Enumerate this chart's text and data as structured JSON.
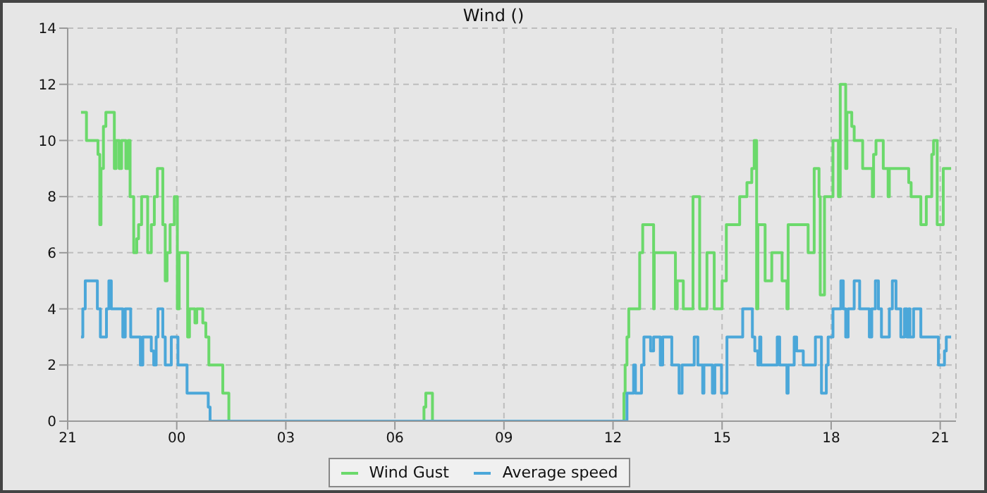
{
  "chart_data": {
    "type": "step",
    "title": "Wind ()",
    "xlim": [
      "2000-01-01T21:00",
      "2000-01-02T21:26"
    ],
    "xticks": [
      {
        "value": "2000-01-01T21:00",
        "label": "21"
      },
      {
        "value": "2000-01-02T00:00",
        "label": "00"
      },
      {
        "value": "2000-01-02T03:00",
        "label": "03"
      },
      {
        "value": "2000-01-02T06:00",
        "label": "06"
      },
      {
        "value": "2000-01-02T09:00",
        "label": "09"
      },
      {
        "value": "2000-01-02T12:00",
        "label": "12"
      },
      {
        "value": "2000-01-02T15:00",
        "label": "15"
      },
      {
        "value": "2000-01-02T18:00",
        "label": "18"
      },
      {
        "value": "2000-01-02T21:00",
        "label": "21"
      }
    ],
    "ylim": [
      0,
      14
    ],
    "yticks": [
      0,
      2,
      4,
      6,
      8,
      10,
      12,
      14
    ],
    "grid": true,
    "legend": "bottom",
    "line_style": "solid",
    "marker": "none",
    "series": [
      {
        "name": "Wind Gust",
        "color": "#6bd96b",
        "x": [
          "2000-01-01T21:22",
          "2000-01-01T21:31",
          "2000-01-01T21:50",
          "2000-01-01T21:53",
          "2000-01-01T21:55",
          "2000-01-01T21:59",
          "2000-01-01T22:03",
          "2000-01-01T22:17",
          "2000-01-01T22:20",
          "2000-01-01T22:25",
          "2000-01-01T22:29",
          "2000-01-01T22:36",
          "2000-01-01T22:40",
          "2000-01-01T22:43",
          "2000-01-01T22:49",
          "2000-01-01T22:54",
          "2000-01-01T22:57",
          "2000-01-01T23:02",
          "2000-01-01T23:12",
          "2000-01-01T23:18",
          "2000-01-01T23:23",
          "2000-01-01T23:28",
          "2000-01-01T23:37",
          "2000-01-01T23:41",
          "2000-01-01T23:44",
          "2000-01-01T23:49",
          "2000-01-01T23:56",
          "2000-01-02T00:01",
          "2000-01-02T00:04",
          "2000-01-02T00:18",
          "2000-01-02T00:21",
          "2000-01-02T00:30",
          "2000-01-02T00:33",
          "2000-01-02T00:43",
          "2000-01-02T00:48",
          "2000-01-02T00:53",
          "2000-01-02T01:02",
          "2000-01-02T01:16",
          "2000-01-02T01:26",
          "2000-01-02T06:48",
          "2000-01-02T06:51",
          "2000-01-02T07:02",
          "2000-01-02T12:18",
          "2000-01-02T12:20",
          "2000-01-02T12:23",
          "2000-01-02T12:26",
          "2000-01-02T12:44",
          "2000-01-02T12:49",
          "2000-01-02T13:07",
          "2000-01-02T13:08",
          "2000-01-02T13:43",
          "2000-01-02T13:46",
          "2000-01-02T13:56",
          "2000-01-02T14:12",
          "2000-01-02T14:23",
          "2000-01-02T14:35",
          "2000-01-02T14:47",
          "2000-01-02T15:00",
          "2000-01-02T15:07",
          "2000-01-02T15:29",
          "2000-01-02T15:41",
          "2000-01-02T15:49",
          "2000-01-02T15:53",
          "2000-01-02T15:57",
          "2000-01-02T15:59",
          "2000-01-02T16:11",
          "2000-01-02T16:22",
          "2000-01-02T16:39",
          "2000-01-02T16:47",
          "2000-01-02T16:49",
          "2000-01-02T17:22",
          "2000-01-02T17:32",
          "2000-01-02T17:40",
          "2000-01-02T17:42",
          "2000-01-02T17:49",
          "2000-01-02T18:03",
          "2000-01-02T18:12",
          "2000-01-02T18:15",
          "2000-01-02T18:24",
          "2000-01-02T18:26",
          "2000-01-02T18:34",
          "2000-01-02T18:38",
          "2000-01-02T18:52",
          "2000-01-02T19:08",
          "2000-01-02T19:10",
          "2000-01-02T19:14",
          "2000-01-02T19:26",
          "2000-01-02T19:34",
          "2000-01-02T19:36",
          "2000-01-02T20:08",
          "2000-01-02T20:12",
          "2000-01-02T20:28",
          "2000-01-02T20:37",
          "2000-01-02T20:46",
          "2000-01-02T20:49",
          "2000-01-02T20:55",
          "2000-01-02T21:05",
          "2000-01-02T21:18"
        ],
        "values": [
          11,
          10,
          9.5,
          7,
          9,
          10.5,
          11,
          9,
          10,
          9,
          10,
          9,
          10,
          8,
          6,
          6.5,
          7,
          8,
          6,
          7,
          8,
          9,
          7,
          5,
          6,
          7,
          8,
          4,
          6,
          3,
          4,
          3.5,
          4,
          3.5,
          3,
          2,
          2,
          1,
          0,
          0.5,
          1,
          0,
          1,
          2,
          3,
          4,
          6,
          7,
          4,
          6,
          4,
          5,
          4,
          8,
          4,
          6,
          4,
          5,
          7,
          8,
          8.5,
          9,
          10,
          4,
          7,
          5,
          6,
          5,
          4,
          7,
          6,
          9,
          8,
          4.5,
          8,
          10,
          8,
          12,
          9,
          11,
          10.5,
          10,
          9,
          8,
          9.5,
          10,
          9,
          8,
          9,
          8.5,
          8,
          7,
          8,
          9.5,
          10,
          7,
          9,
          9
        ]
      },
      {
        "name": "Average speed",
        "color": "#4ba7d9",
        "x": [
          "2000-01-01T21:22",
          "2000-01-01T21:25",
          "2000-01-01T21:29",
          "2000-01-01T21:49",
          "2000-01-01T21:54",
          "2000-01-01T22:04",
          "2000-01-01T22:08",
          "2000-01-01T22:12",
          "2000-01-01T22:31",
          "2000-01-01T22:35",
          "2000-01-01T22:39",
          "2000-01-01T22:44",
          "2000-01-01T23:00",
          "2000-01-01T23:04",
          "2000-01-01T23:08",
          "2000-01-01T23:18",
          "2000-01-01T23:22",
          "2000-01-01T23:26",
          "2000-01-01T23:29",
          "2000-01-01T23:37",
          "2000-01-01T23:41",
          "2000-01-01T23:51",
          "2000-01-02T00:02",
          "2000-01-02T00:17",
          "2000-01-02T00:52",
          "2000-01-02T00:55",
          "2000-01-02T12:23",
          "2000-01-02T12:34",
          "2000-01-02T12:37",
          "2000-01-02T12:47",
          "2000-01-02T12:51",
          "2000-01-02T13:02",
          "2000-01-02T13:07",
          "2000-01-02T13:18",
          "2000-01-02T13:22",
          "2000-01-02T13:37",
          "2000-01-02T13:49",
          "2000-01-02T13:54",
          "2000-01-02T13:59",
          "2000-01-02T14:14",
          "2000-01-02T14:20",
          "2000-01-02T14:28",
          "2000-01-02T14:30",
          "2000-01-02T14:34",
          "2000-01-02T14:44",
          "2000-01-02T14:48",
          "2000-01-02T14:51",
          "2000-01-02T14:59",
          "2000-01-02T15:08",
          "2000-01-02T15:34",
          "2000-01-02T15:50",
          "2000-01-02T15:54",
          "2000-01-02T15:59",
          "2000-01-02T16:02",
          "2000-01-02T16:04",
          "2000-01-02T16:31",
          "2000-01-02T16:35",
          "2000-01-02T16:47",
          "2000-01-02T16:49",
          "2000-01-02T16:59",
          "2000-01-02T17:03",
          "2000-01-02T17:14",
          "2000-01-02T17:34",
          "2000-01-02T17:44",
          "2000-01-02T17:52",
          "2000-01-02T17:55",
          "2000-01-02T18:03",
          "2000-01-02T18:16",
          "2000-01-02T18:20",
          "2000-01-02T18:24",
          "2000-01-02T18:28",
          "2000-01-02T18:38",
          "2000-01-02T18:47",
          "2000-01-02T19:03",
          "2000-01-02T19:07",
          "2000-01-02T19:13",
          "2000-01-02T19:18",
          "2000-01-02T19:23",
          "2000-01-02T19:36",
          "2000-01-02T19:41",
          "2000-01-02T19:47",
          "2000-01-02T19:55",
          "2000-01-02T20:01",
          "2000-01-02T20:05",
          "2000-01-02T20:08",
          "2000-01-02T20:10",
          "2000-01-02T20:16",
          "2000-01-02T20:28",
          "2000-01-02T20:57",
          "2000-01-02T21:07",
          "2000-01-02T21:10",
          "2000-01-02T21:18"
        ],
        "values": [
          3,
          4,
          5,
          4,
          3,
          4,
          5,
          4,
          3,
          4,
          4,
          3,
          2,
          3,
          3,
          2.5,
          2,
          3,
          4,
          3,
          2,
          3,
          2,
          1,
          0.5,
          0,
          1,
          2,
          1,
          2,
          3,
          2.5,
          3,
          2,
          3,
          2,
          1,
          2,
          2,
          3,
          2,
          1,
          2,
          2,
          1,
          2,
          2,
          1,
          3,
          4,
          3,
          2.5,
          2,
          3,
          2,
          3,
          2,
          1,
          2,
          3,
          2.5,
          2,
          3,
          1,
          2,
          3,
          4,
          5,
          4,
          3,
          4,
          5,
          4,
          3,
          4,
          5,
          4,
          3,
          4,
          5,
          4,
          3,
          4,
          3,
          4,
          3,
          4,
          3,
          2,
          2.5,
          3,
          3
        ]
      }
    ]
  }
}
